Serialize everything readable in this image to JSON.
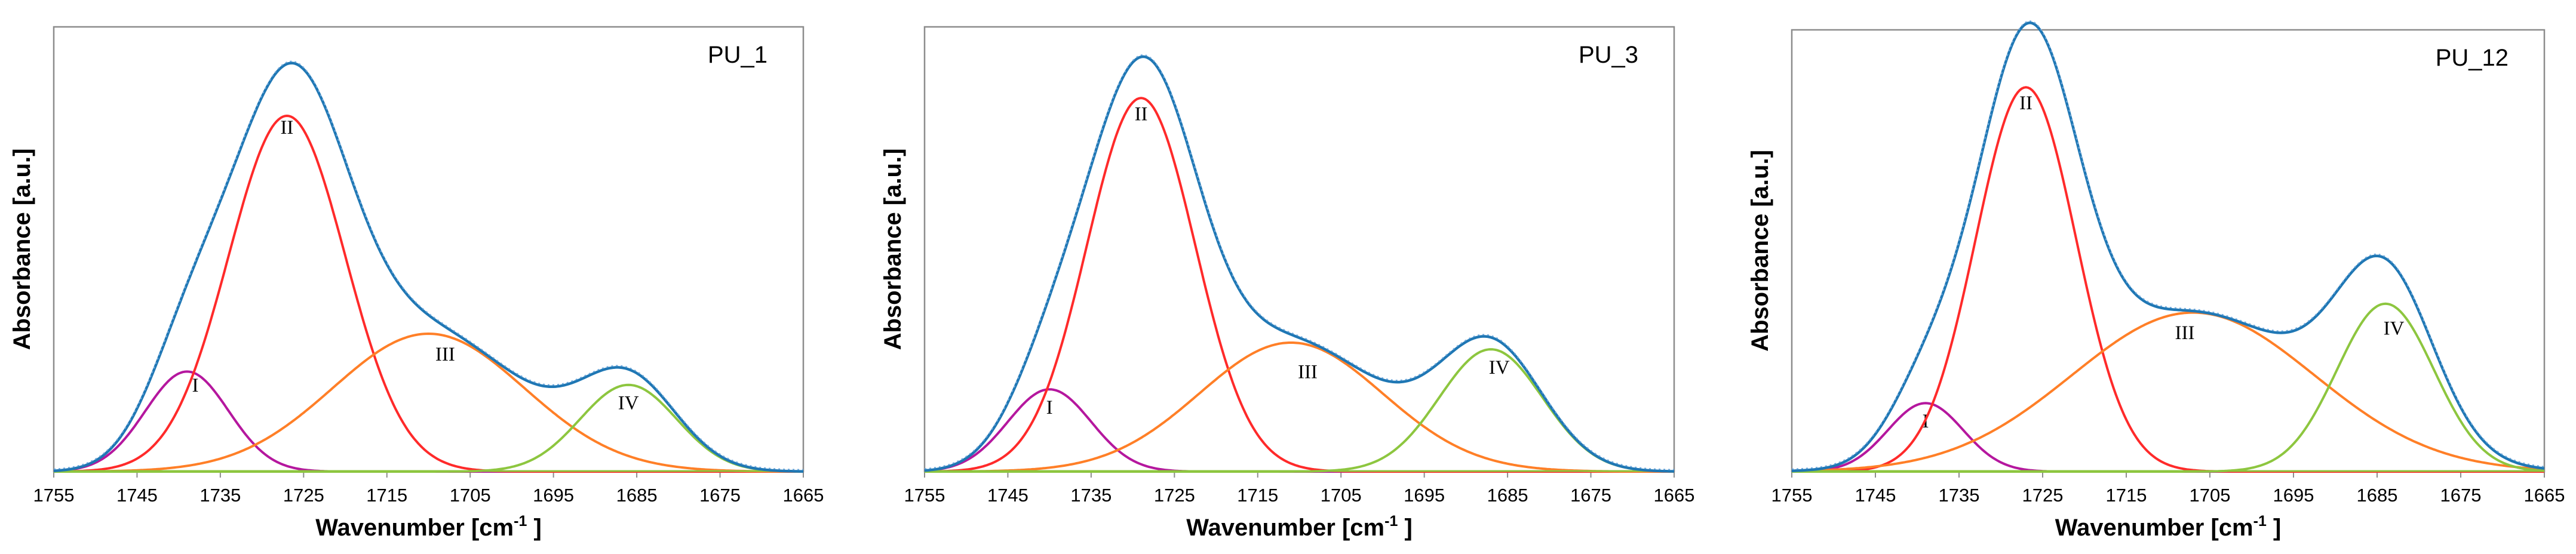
{
  "chart_data": [
    {
      "type": "line",
      "title": "PU_1",
      "xlabel": "Wavenumber [cm",
      "xlabel_sup": "-1",
      "xlabel_end": " ]",
      "ylabel": "Absorbance [a.u.]",
      "xlim": [
        1755,
        1665
      ],
      "x_reversed": true,
      "ylim": [
        0,
        1.0
      ],
      "xticks": [
        1755,
        1745,
        1735,
        1725,
        1715,
        1705,
        1695,
        1685,
        1675,
        1665
      ],
      "colors": {
        "total": "#1f77b4",
        "I": "#b5179e",
        "II": "#ff2a2a",
        "III": "#ff7f27",
        "IV": "#8dc63f"
      },
      "peaks": [
        {
          "name": "I",
          "center": 1739,
          "amplitude": 0.225,
          "sigma": 5.0,
          "label_pos": [
            1738,
            0.18
          ]
        },
        {
          "name": "II",
          "center": 1727,
          "amplitude": 0.8,
          "sigma": 7.0,
          "label_pos": [
            1727,
            0.76
          ]
        },
        {
          "name": "III",
          "center": 1710,
          "amplitude": 0.31,
          "sigma": 11.5,
          "label_pos": [
            1708,
            0.25
          ]
        },
        {
          "name": "IV",
          "center": 1686,
          "amplitude": 0.195,
          "sigma": 5.8,
          "label_pos": [
            1686,
            0.14
          ]
        }
      ]
    },
    {
      "type": "line",
      "title": "PU_3",
      "xlabel": "Wavenumber [cm",
      "xlabel_sup": "-1",
      "xlabel_end": " ]",
      "ylabel": "Absorbance [a.u.]",
      "xlim": [
        1755,
        1665
      ],
      "x_reversed": true,
      "ylim": [
        0,
        1.0
      ],
      "xticks": [
        1755,
        1745,
        1735,
        1725,
        1715,
        1705,
        1695,
        1685,
        1675,
        1665
      ],
      "colors": {
        "total": "#1f77b4",
        "I": "#b5179e",
        "II": "#ff2a2a",
        "III": "#ff7f27",
        "IV": "#8dc63f"
      },
      "peaks": [
        {
          "name": "I",
          "center": 1740,
          "amplitude": 0.185,
          "sigma": 5.0,
          "label_pos": [
            1740,
            0.13
          ]
        },
        {
          "name": "II",
          "center": 1729,
          "amplitude": 0.84,
          "sigma": 6.5,
          "label_pos": [
            1729,
            0.79
          ]
        },
        {
          "name": "III",
          "center": 1711,
          "amplitude": 0.29,
          "sigma": 11.0,
          "label_pos": [
            1709,
            0.21
          ]
        },
        {
          "name": "IV",
          "center": 1687,
          "amplitude": 0.275,
          "sigma": 6.2,
          "label_pos": [
            1686,
            0.22
          ]
        }
      ]
    },
    {
      "type": "line",
      "title": "PU_12",
      "xlabel": "Wavenumber [cm",
      "xlabel_sup": "-1",
      "xlabel_end": " ]",
      "ylabel": "Absorbance [a.u.]",
      "xlim": [
        1755,
        1665
      ],
      "x_reversed": true,
      "ylim": [
        0,
        1.0
      ],
      "xticks": [
        1755,
        1745,
        1735,
        1725,
        1715,
        1705,
        1695,
        1685,
        1675,
        1665
      ],
      "colors": {
        "total": "#1f77b4",
        "I": "#b5179e",
        "II": "#ff2a2a",
        "III": "#ff7f27",
        "IV": "#8dc63f"
      },
      "peaks": [
        {
          "name": "I",
          "center": 1739,
          "amplitude": 0.155,
          "sigma": 4.5,
          "label_pos": [
            1739,
            0.1
          ]
        },
        {
          "name": "II",
          "center": 1727,
          "amplitude": 0.87,
          "sigma": 6.0,
          "label_pos": [
            1727,
            0.82
          ]
        },
        {
          "name": "III",
          "center": 1707,
          "amplitude": 0.36,
          "sigma": 14.5,
          "label_pos": [
            1708,
            0.3
          ]
        },
        {
          "name": "IV",
          "center": 1684,
          "amplitude": 0.38,
          "sigma": 5.8,
          "label_pos": [
            1683,
            0.31
          ]
        }
      ]
    }
  ]
}
